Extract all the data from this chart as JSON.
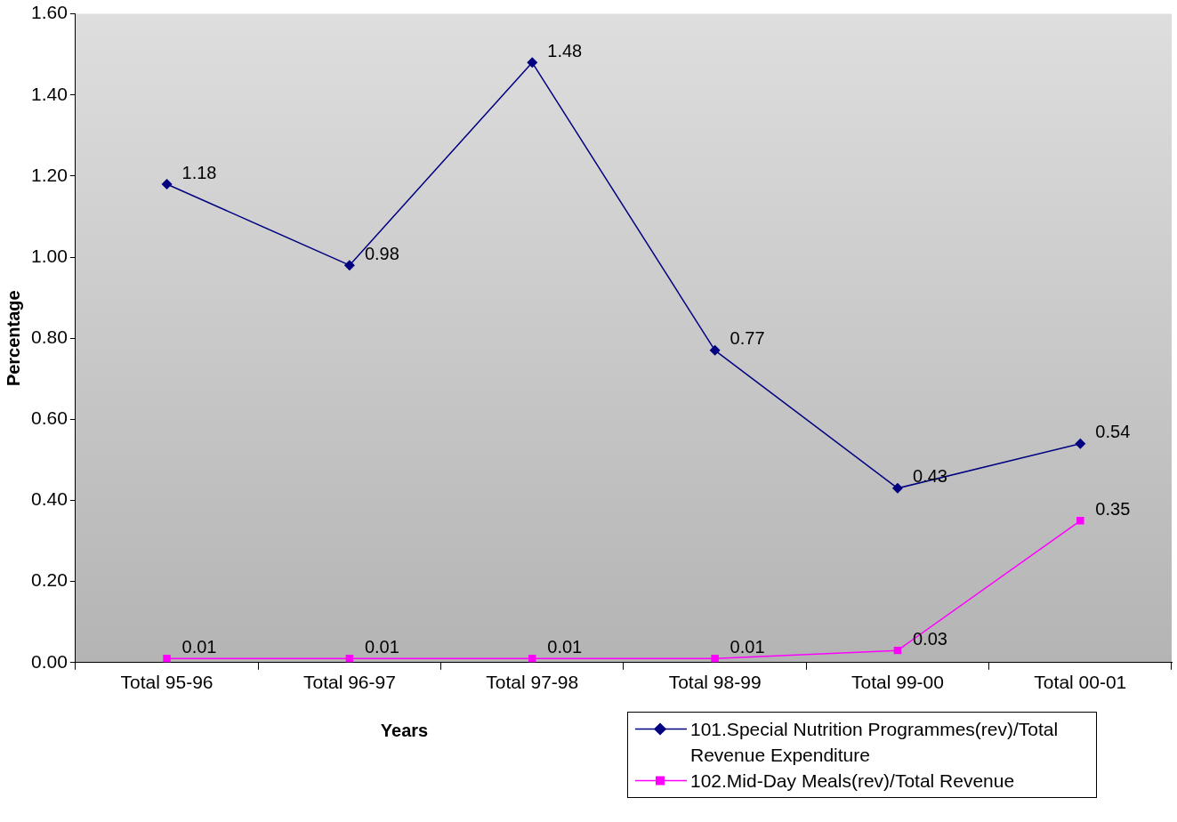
{
  "chart_data": {
    "type": "line",
    "xlabel": "Years",
    "ylabel": "Percentage",
    "categories": [
      "Total 95-96",
      "Total 96-97",
      "Total 97-98",
      "Total 98-99",
      "Total 99-00",
      "Total 00-01"
    ],
    "series": [
      {
        "name": "101.Special Nutrition Programmes(rev)/Total Revenue Expenditure",
        "color": "#000080",
        "marker": "diamond",
        "values": [
          1.18,
          0.98,
          1.48,
          0.77,
          0.43,
          0.54
        ]
      },
      {
        "name": "102.Mid-Day Meals(rev)/Total Revenue",
        "color": "#ff00ff",
        "marker": "square",
        "values": [
          0.01,
          0.01,
          0.01,
          0.01,
          0.03,
          0.35
        ]
      }
    ],
    "ylim": [
      0,
      1.6
    ],
    "yticks": [
      {
        "value": 0,
        "label": "0.00"
      },
      {
        "value": 0.2,
        "label": "0.20"
      },
      {
        "value": 0.4,
        "label": "0.40"
      },
      {
        "value": 0.6,
        "label": "0.60"
      },
      {
        "value": 0.8,
        "label": "0.80"
      },
      {
        "value": 1,
        "label": "1.00"
      },
      {
        "value": 1.2,
        "label": "1.20"
      },
      {
        "value": 1.4,
        "label": "1.40"
      },
      {
        "value": 1.6,
        "label": "1.60"
      }
    ],
    "grid": false,
    "legend": "bottom right",
    "data_labels": true,
    "line_style": "solid"
  }
}
